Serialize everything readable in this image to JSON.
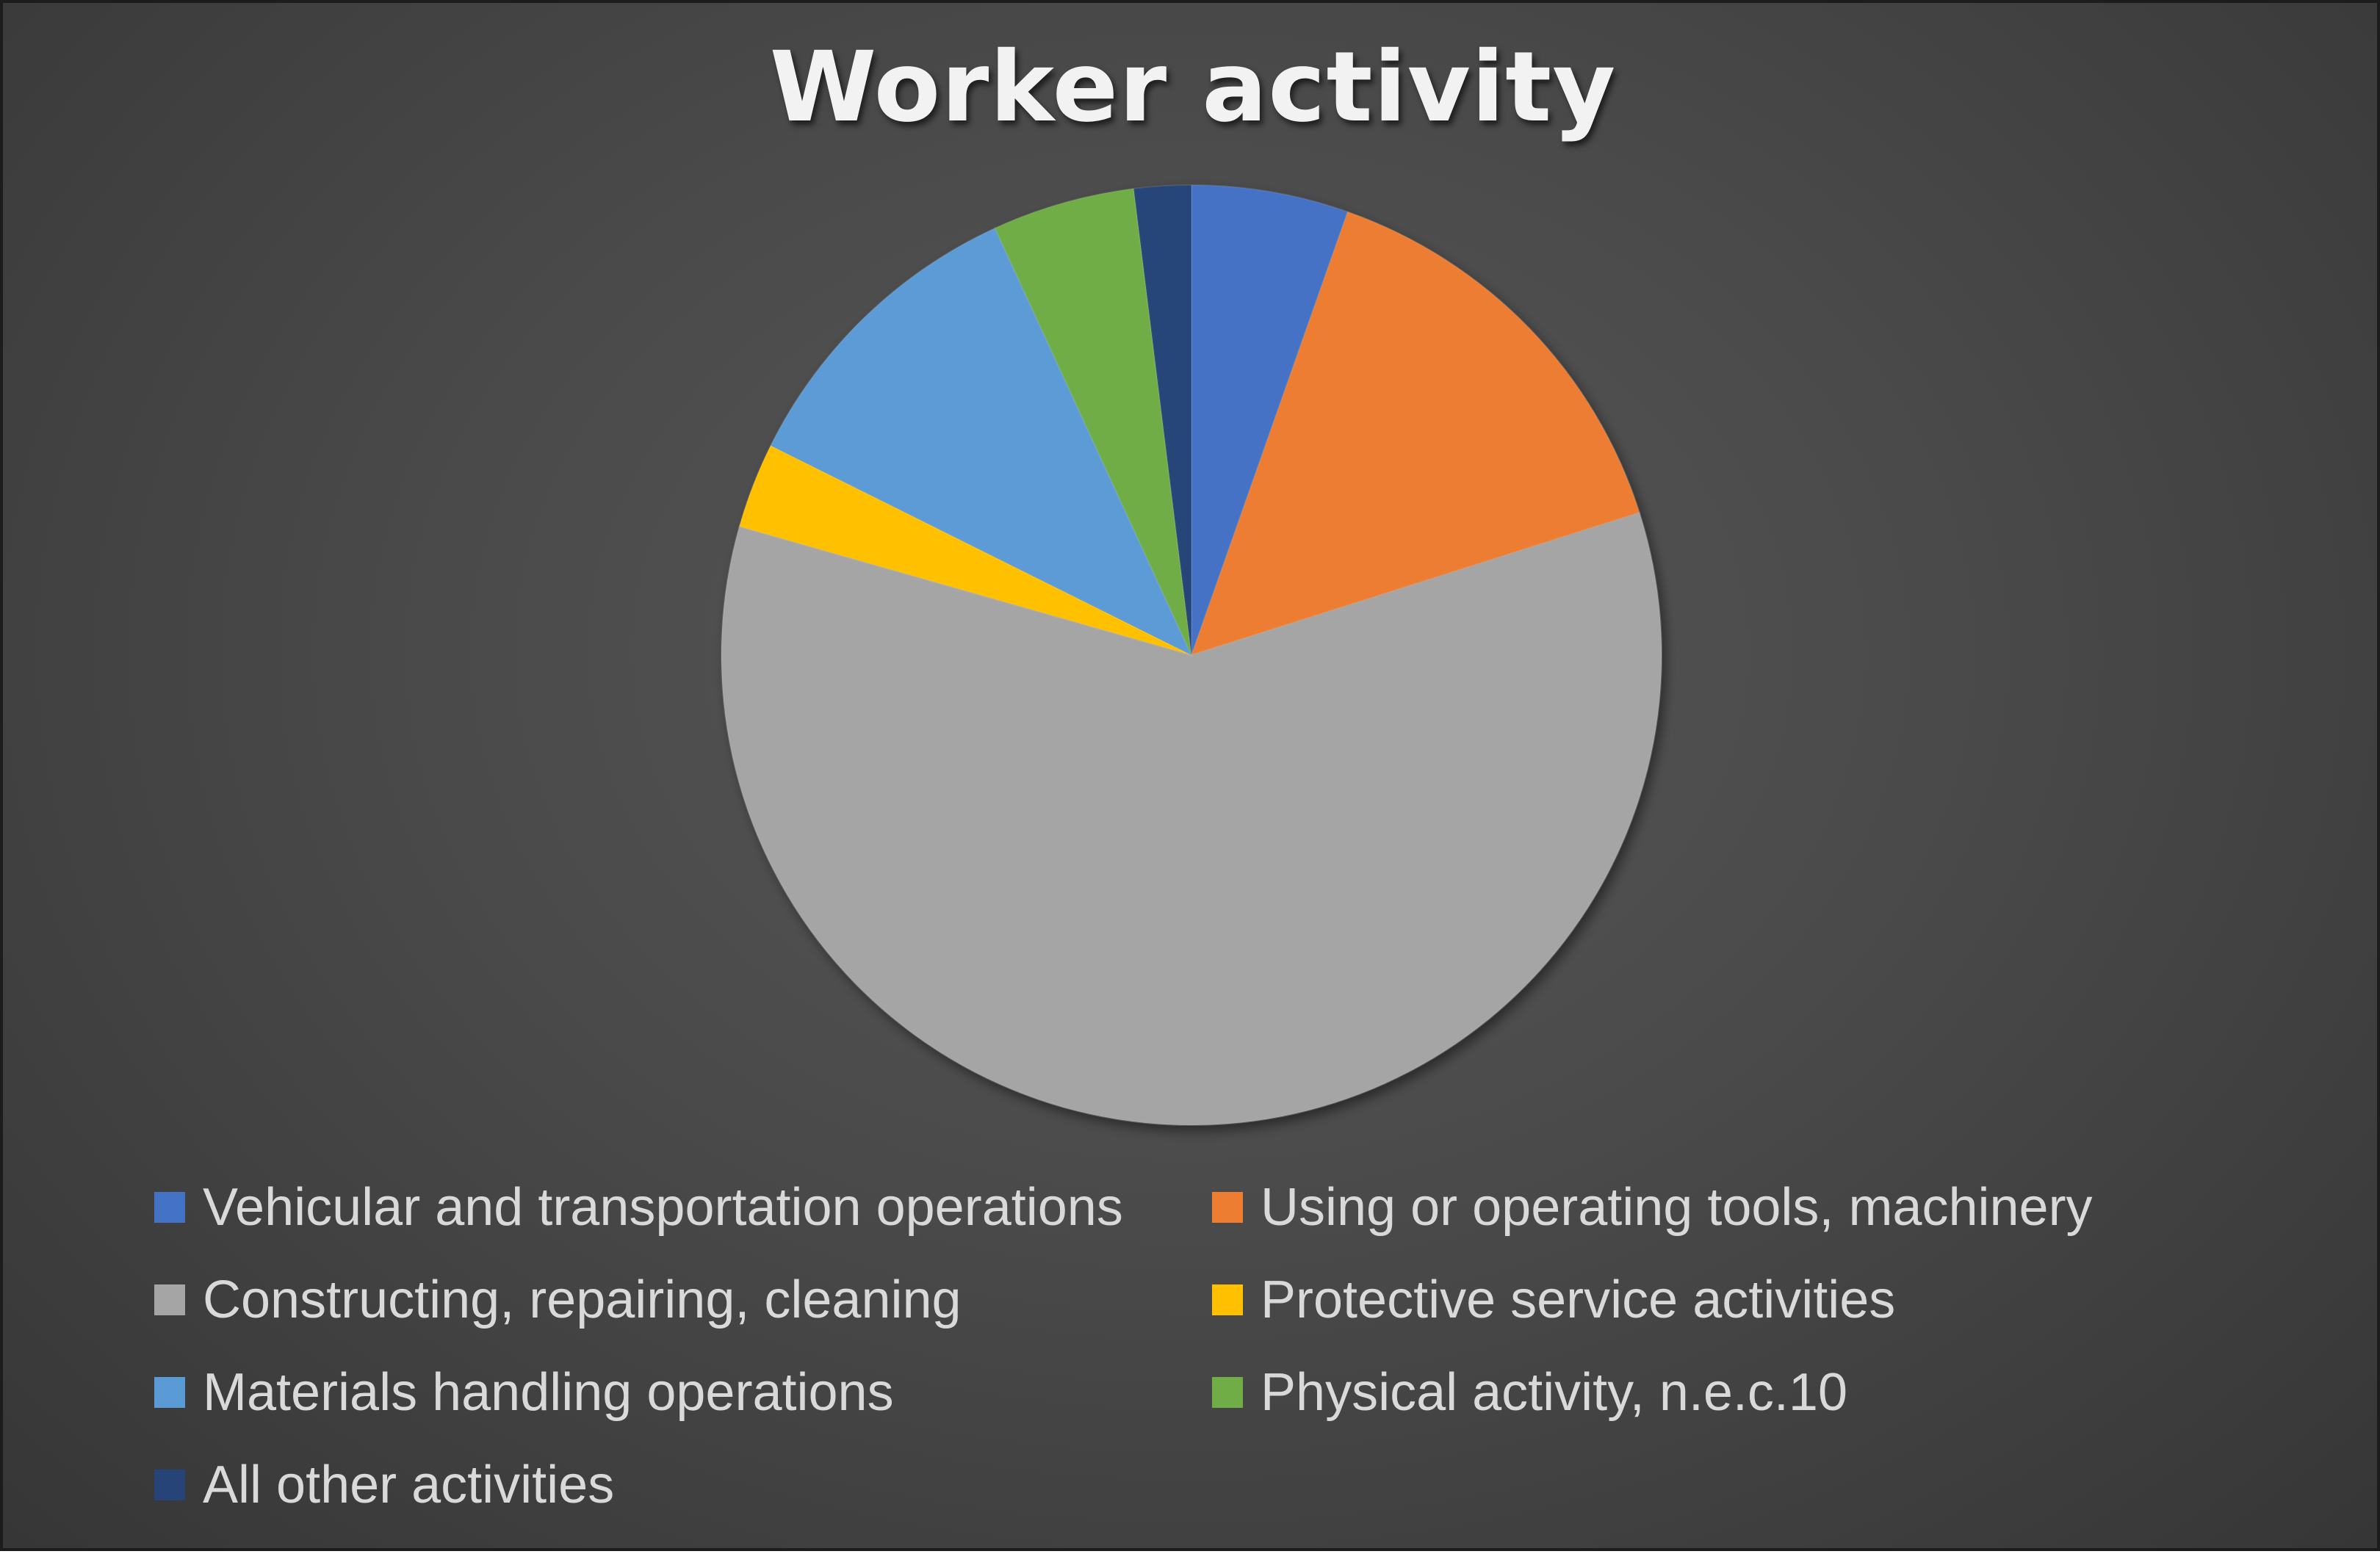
{
  "chart_data": {
    "type": "pie",
    "title": "Worker activity",
    "categories": [
      "Vehicular and transportation operations",
      "Using or operating tools, machinery",
      "Constructing, repairing, cleaning",
      "Protective service activities",
      "Materials handling operations",
      "Physical activity, n.e.c.10",
      "All other activities"
    ],
    "values": [
      5.5,
      15.0,
      60.5,
      3.0,
      11.0,
      5.0,
      2.0
    ],
    "colors": [
      "#4472C4",
      "#ED7D31",
      "#A5A5A5",
      "#FFC000",
      "#5B9BD5",
      "#70AD47",
      "#264478"
    ],
    "legend": "bottom",
    "start_angle_deg": 0,
    "direction": "clockwise"
  }
}
